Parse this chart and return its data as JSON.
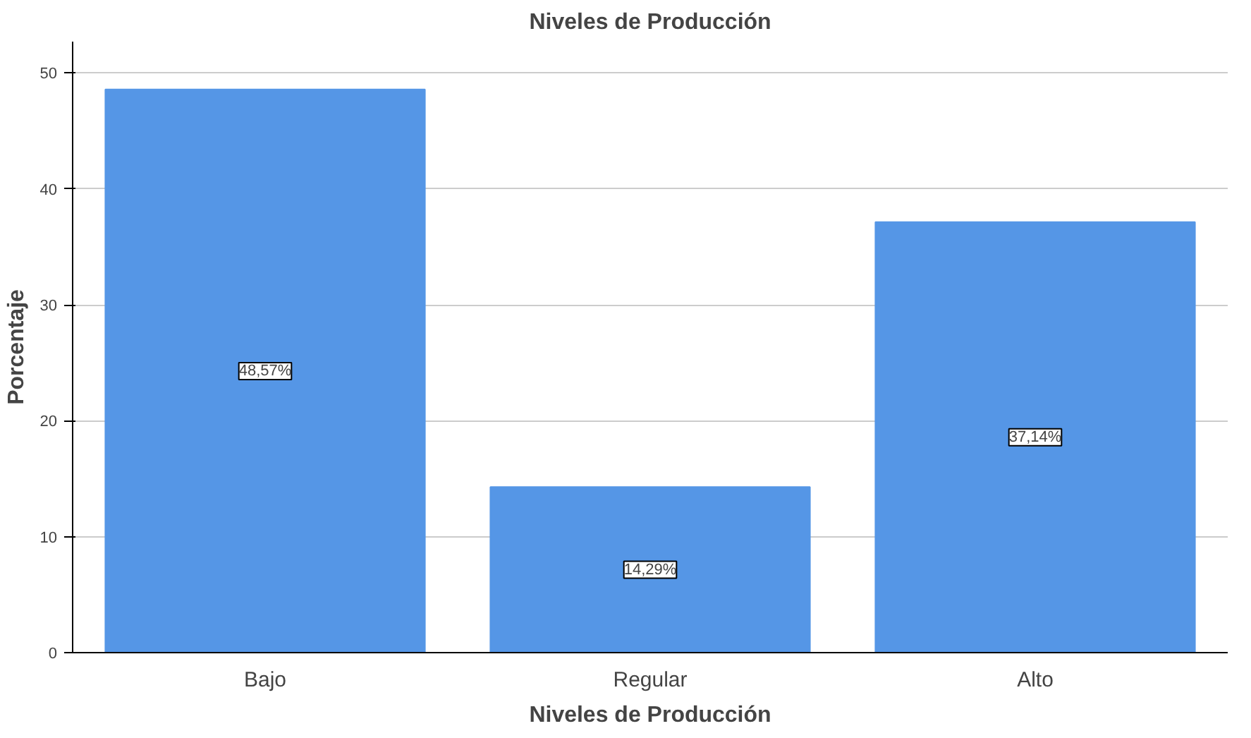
{
  "chart_data": {
    "type": "bar",
    "title": "Niveles de Producción",
    "xlabel": "Niveles de Producción",
    "ylabel": "Porcentaje",
    "categories": [
      "Bajo",
      "Regular",
      "Alto"
    ],
    "values": [
      48.57,
      14.29,
      37.14
    ],
    "value_labels": [
      "48,57%",
      "14,29%",
      "37,14%"
    ],
    "color": "#5596e6",
    "ylim": [
      0,
      52.7
    ],
    "yticks": [
      0,
      10,
      20,
      30,
      40,
      50
    ],
    "grid": "y"
  }
}
